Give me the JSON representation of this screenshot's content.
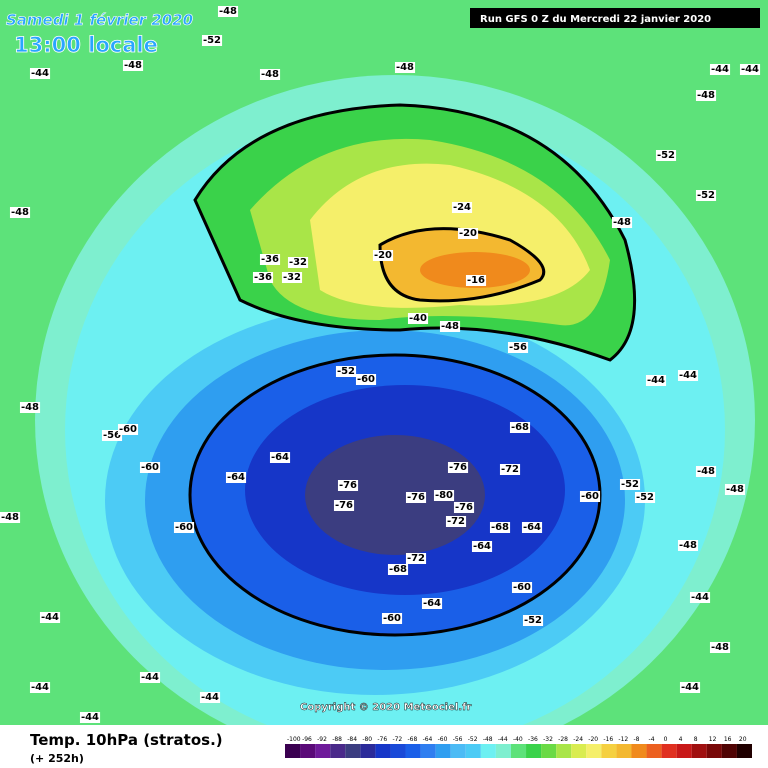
{
  "header": {
    "date": "Samedi 1 février 2020",
    "time": "13:00 locale",
    "run": "Run GFS 0 Z du Mercredi 22 janvier 2020"
  },
  "map": {
    "copyright": "Copyright © 2020 Meteociel.fr",
    "labels": [
      "-48",
      "-52",
      "-44",
      "-48",
      "-48",
      "-48",
      "-44",
      "-44",
      "-48",
      "-52",
      "-52",
      "-48",
      "-44",
      "-44",
      "-48",
      "-52",
      "-48",
      "-36",
      "-32",
      "-36",
      "-32",
      "-24",
      "-20",
      "-20",
      "-16",
      "-40",
      "-48",
      "-56",
      "-52",
      "-60",
      "-64",
      "-68",
      "-72",
      "-64",
      "-64",
      "-76",
      "-76",
      "-76",
      "-80",
      "-76",
      "-76",
      "-72",
      "-68",
      "-64",
      "-60",
      "-60",
      "-60",
      "-64",
      "-68",
      "-72",
      "-60",
      "-60",
      "-56",
      "-60",
      "-52",
      "-48",
      "-44",
      "-44",
      "-44",
      "-48",
      "-52",
      "-48",
      "-44",
      "-48",
      "-44",
      "-48",
      "-44",
      "-44"
    ]
  },
  "legend": {
    "title": "Temp. 10hPa (stratos.)",
    "subtitle": "(+ 252h)",
    "ticks": [
      -100,
      -96,
      -92,
      -88,
      -84,
      -80,
      -76,
      -72,
      -68,
      -64,
      -60,
      -56,
      -52,
      -48,
      -44,
      -40,
      -36,
      -32,
      -28,
      -24,
      -20,
      -16,
      -12,
      -8,
      -4,
      0,
      4,
      8,
      12,
      16,
      20
    ]
  }
}
